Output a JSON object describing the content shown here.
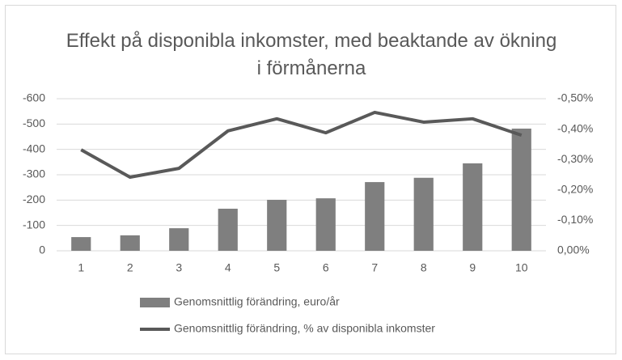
{
  "chart_data": {
    "type": "combo",
    "title": "Effekt på disponibla inkomster, med beaktande av ökning i förmånerna",
    "categories": [
      "1",
      "2",
      "3",
      "4",
      "5",
      "6",
      "7",
      "8",
      "9",
      "10"
    ],
    "series": [
      {
        "name": "Genomsnittlig förändring, euro/år",
        "type": "bar",
        "color": "#7f7f7f",
        "values": [
          -54,
          -61,
          -89,
          -166,
          -201,
          -207,
          -271,
          -288,
          -345,
          -482
        ]
      },
      {
        "name": "Genomsnittlig förändring, % av disponibla inkomster",
        "type": "line",
        "axis": "y2",
        "color": "#595959",
        "values": [
          -0.332,
          -0.242,
          -0.271,
          -0.394,
          -0.434,
          -0.388,
          -0.455,
          -0.423,
          -0.434,
          -0.38
        ]
      }
    ],
    "ylim": [
      0,
      -600
    ],
    "yticks": [
      0,
      -100,
      -200,
      -300,
      -400,
      -500,
      -600
    ],
    "y2lim": [
      0,
      -0.5
    ],
    "y2ticks": [
      {
        "value": 0,
        "label": "0,00%"
      },
      {
        "value": -0.1,
        "label": "-0,10%"
      },
      {
        "value": -0.2,
        "label": "-0,20%"
      },
      {
        "value": -0.3,
        "label": "-0,30%"
      },
      {
        "value": -0.4,
        "label": "-0,40%"
      },
      {
        "value": -0.5,
        "label": "-0,50%"
      }
    ],
    "grid": true,
    "legend": "bottom"
  }
}
